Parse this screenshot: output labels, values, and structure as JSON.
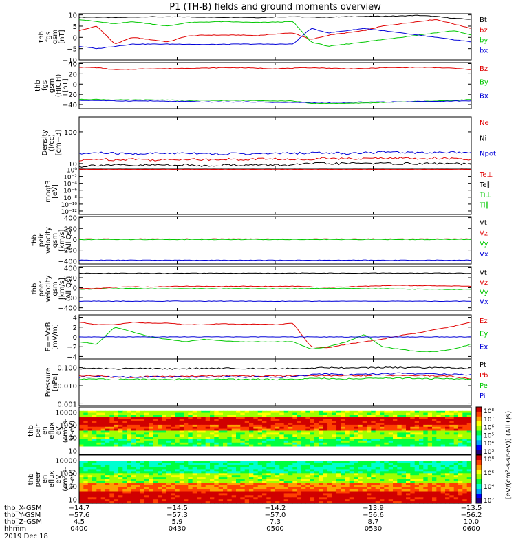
{
  "title": "P1 (TH-B) fields and ground moments overview",
  "colors": {
    "black": "#000000",
    "red": "#e00000",
    "green": "#00c800",
    "blue": "#0000d8"
  },
  "chart_data": [
    {
      "type": "line",
      "ylabel": [
        "thb",
        "fgs",
        "gsm",
        "[nT]"
      ],
      "yticks": [
        {
          "v": 10,
          "t": "10"
        },
        {
          "v": 5,
          "t": "5"
        },
        {
          "v": 0,
          "t": "0"
        },
        {
          "v": -5,
          "t": "−5"
        },
        {
          "v": -10,
          "t": "−10"
        }
      ],
      "ylim": [
        -10,
        10.5
      ],
      "series": [
        {
          "name": "Bt",
          "color": "#000000",
          "values": [
            9,
            9,
            8.8,
            9,
            9.2,
            9.1,
            9.1,
            9.0,
            8.9,
            9.0,
            8.8,
            9.1,
            9.2,
            9.0,
            9.0,
            9.2,
            9.3,
            9.4,
            9.5,
            9.8,
            9.3,
            8.5,
            8.0
          ]
        },
        {
          "name": "bz",
          "color": "#e00000",
          "values": [
            3,
            5,
            -3,
            0,
            -1,
            -2,
            0.5,
            1,
            1,
            1,
            0.8,
            1.5,
            2,
            -1,
            1,
            2,
            3,
            5,
            6,
            7,
            8,
            6,
            4
          ]
        },
        {
          "name": "by",
          "color": "#00c800",
          "values": [
            8,
            7,
            6,
            7,
            6,
            5,
            6.5,
            6.8,
            7,
            6.8,
            6.6,
            6.8,
            7,
            -2,
            -4,
            -3,
            -2,
            -1,
            0,
            1,
            2,
            3,
            1
          ]
        },
        {
          "name": "bx",
          "color": "#0000d8",
          "values": [
            -4,
            -5,
            -4,
            -3,
            -3,
            -3,
            -3,
            -3.2,
            -3.1,
            -3,
            -3,
            -3,
            -3,
            4,
            2,
            3,
            4,
            3,
            2,
            1,
            0,
            -1,
            -2
          ]
        }
      ]
    },
    {
      "type": "line",
      "ylabel": [
        "thb",
        "fgs",
        "gsm",
        "(HIGH)",
        "[nT]"
      ],
      "yticks": [
        {
          "v": 40,
          "t": "40"
        },
        {
          "v": 20,
          "t": "20"
        },
        {
          "v": 0,
          "t": "0"
        },
        {
          "v": -20,
          "t": "−20"
        },
        {
          "v": -40,
          "t": "−40"
        }
      ],
      "ylim": [
        -48,
        42
      ],
      "series": [
        {
          "name": "Bz",
          "color": "#e00000",
          "values": [
            33,
            32,
            28,
            29,
            30,
            30,
            31,
            31,
            32,
            32,
            31,
            30,
            31,
            32,
            31,
            30,
            30,
            32,
            32,
            33,
            32,
            31,
            28
          ]
        },
        {
          "name": "By",
          "color": "#00c800",
          "values": [
            -30,
            -30,
            -31,
            -31,
            -31,
            -31,
            -32,
            -32,
            -32,
            -32,
            -32,
            -33,
            -33,
            -38,
            -38,
            -38,
            -37,
            -36,
            -35,
            -34,
            -33,
            -32,
            -30
          ]
        },
        {
          "name": "Bx",
          "color": "#0000d8",
          "values": [
            -32,
            -32,
            -33,
            -33,
            -33,
            -34,
            -34,
            -35,
            -35,
            -35,
            -35,
            -36,
            -36,
            -36,
            -36,
            -36,
            -35,
            -35,
            -35,
            -34,
            -34,
            -33,
            -33
          ]
        }
      ]
    },
    {
      "type": "line",
      "ylabel": [
        "Density",
        "(l/cc)",
        "[cm−3]"
      ],
      "log": true,
      "yticks": [
        {
          "v": 100,
          "t": "100"
        },
        {
          "v": 10,
          "t": "10"
        }
      ],
      "ylim": [
        7,
        300
      ],
      "series": [
        {
          "name": "Ne",
          "color": "#e00000",
          "values": [
            12,
            14,
            13,
            14,
            13,
            13,
            14,
            13,
            14,
            13,
            14,
            14,
            13,
            14,
            15,
            14,
            14,
            15,
            15,
            14,
            15,
            14,
            13
          ]
        },
        {
          "name": "Ni",
          "color": "#000000",
          "values": [
            8,
            9,
            9,
            8.5,
            9,
            9,
            9,
            8.5,
            9,
            9,
            9,
            9,
            9,
            10,
            10,
            10,
            10.5,
            10,
            10,
            10,
            10,
            10,
            9.5
          ]
        },
        {
          "name": "Npot",
          "color": "#0000d8",
          "values": [
            20,
            22,
            21,
            20,
            21,
            21,
            22,
            21,
            20,
            21,
            20,
            21,
            21,
            22,
            22,
            21,
            22,
            23,
            23,
            22,
            23,
            23,
            22
          ]
        }
      ]
    },
    {
      "type": "line",
      "ylabel": [
        "moqt3",
        "[eV]"
      ],
      "log": true,
      "yticks": [
        {
          "v": 1,
          "t": "10⁰"
        },
        {
          "v": 0.01,
          "t": "10⁻²"
        },
        {
          "v": 0.0001,
          "t": "10⁻⁴"
        },
        {
          "v": 1e-06,
          "t": "10⁻⁶"
        },
        {
          "v": 1e-08,
          "t": "10⁻⁸"
        },
        {
          "v": 1e-10,
          "t": "10⁻¹⁰"
        },
        {
          "v": 1e-12,
          "t": "10⁻¹²"
        }
      ],
      "ylim": [
        1e-13,
        2
      ],
      "series": [
        {
          "name": "Te⊥",
          "color": "#e00000",
          "values": [
            1,
            1,
            1,
            1,
            1,
            1,
            1,
            1,
            1,
            1,
            1,
            1,
            1,
            1,
            1,
            1,
            1,
            1,
            1,
            1,
            1,
            1,
            1
          ]
        },
        {
          "name": "Te∥",
          "color": "#000000",
          "values": []
        },
        {
          "name": "Ti⊥",
          "color": "#00c800",
          "values": []
        },
        {
          "name": "Ti∥",
          "color": "#00c800",
          "values": []
        }
      ]
    },
    {
      "type": "line",
      "ylabel": [
        "thb",
        "peir",
        "velocity",
        "gsm",
        "[km/s]",
        "(All Qs)"
      ],
      "yticks": [
        {
          "v": 400,
          "t": "400"
        },
        {
          "v": 200,
          "t": "200"
        },
        {
          "v": 0,
          "t": "0"
        },
        {
          "v": -200,
          "t": "−200"
        },
        {
          "v": -400,
          "t": "−400"
        }
      ],
      "ylim": [
        -460,
        420
      ],
      "series": [
        {
          "name": "Vt",
          "color": "#000000",
          "values": []
        },
        {
          "name": "Vz",
          "color": "#e00000",
          "values": [
            5,
            5,
            4,
            5,
            5,
            5,
            6,
            5,
            5,
            5,
            4,
            5,
            5,
            5,
            5,
            5,
            6,
            5,
            5,
            5,
            4,
            5,
            5
          ]
        },
        {
          "name": "Vy",
          "color": "#00c800",
          "values": [
            -5,
            -5,
            -6,
            -5,
            -5,
            -5,
            -5,
            -5,
            -5,
            -5,
            -5,
            -5,
            -5,
            -5,
            -5,
            -5,
            -5,
            -5,
            -5,
            -5,
            -5,
            -5,
            -5
          ]
        },
        {
          "name": "Vx",
          "color": "#0000d8",
          "values": [
            -390,
            -390,
            -390,
            -390,
            -390,
            -390,
            -390,
            -390,
            -390,
            -390,
            -390,
            -390,
            -390,
            -390,
            -390,
            -390,
            -390,
            -390,
            -390,
            -390,
            -390,
            -390,
            -390
          ]
        }
      ]
    },
    {
      "type": "line",
      "ylabel": [
        "thb",
        "peer",
        "velocity",
        "gsm",
        "[km/s]",
        "(All Qs)"
      ],
      "yticks": [
        {
          "v": 400,
          "t": "400"
        },
        {
          "v": 200,
          "t": "200"
        },
        {
          "v": 0,
          "t": "0"
        },
        {
          "v": -200,
          "t": "−200"
        },
        {
          "v": -400,
          "t": "−400"
        }
      ],
      "ylim": [
        -460,
        420
      ],
      "series": [
        {
          "name": "Vt",
          "color": "#000000",
          "values": [
            290,
            285,
            290,
            288,
            290,
            285,
            290,
            287,
            290,
            288,
            290,
            289,
            290,
            292,
            290,
            288,
            290,
            292,
            291,
            290,
            292,
            290,
            289
          ]
        },
        {
          "name": "Vz",
          "color": "#e00000",
          "values": [
            -20,
            -15,
            10,
            20,
            15,
            25,
            30,
            30,
            25,
            30,
            30,
            25,
            30,
            20,
            10,
            15,
            30,
            40,
            50,
            40,
            40,
            35,
            30
          ]
        },
        {
          "name": "Vy",
          "color": "#00c800",
          "values": [
            -30,
            -25,
            -20,
            -15,
            -20,
            -20,
            -15,
            -20,
            -20,
            -20,
            -20,
            -20,
            -20,
            -15,
            -10,
            -15,
            -20,
            -20,
            -25,
            -30,
            -30,
            -35,
            -30
          ]
        },
        {
          "name": "Vx",
          "color": "#0000d8",
          "values": [
            -270,
            -270,
            -270,
            -270,
            -270,
            -270,
            -270,
            -270,
            -270,
            -270,
            -270,
            -270,
            -270,
            -270,
            -270,
            -270,
            -270,
            -270,
            -270,
            -270,
            -270,
            -270,
            -270
          ]
        }
      ]
    },
    {
      "type": "line",
      "ylabel": [
        "E=−VxB",
        "[mV/m]"
      ],
      "yticks": [
        {
          "v": 4,
          "t": "4"
        },
        {
          "v": 2,
          "t": "2"
        },
        {
          "v": 0,
          "t": "0"
        },
        {
          "v": -2,
          "t": "−2"
        },
        {
          "v": -4,
          "t": "−4"
        }
      ],
      "ylim": [
        -4.5,
        4.5
      ],
      "series": [
        {
          "name": "Ez",
          "color": "#e00000",
          "values": [
            3,
            2.5,
            2.5,
            3,
            2.8,
            2.8,
            2.5,
            2.5,
            2.7,
            2.6,
            2.6,
            2.5,
            2.8,
            -2,
            -2.2,
            -1.5,
            -1,
            -0.5,
            0.3,
            0.8,
            1.5,
            2.2,
            3
          ]
        },
        {
          "name": "Ey",
          "color": "#00c800",
          "values": [
            -1,
            -1.5,
            2,
            1,
            0,
            -0.5,
            -1,
            -0.5,
            -0.8,
            -1,
            -1,
            -1,
            -1,
            -2.5,
            -2,
            -1,
            0.5,
            -2,
            -2.5,
            -3,
            -3,
            -2.5,
            -1.5
          ]
        },
        {
          "name": "Ex",
          "color": "#0000d8",
          "values": [
            0,
            0,
            0,
            0,
            0,
            0,
            0,
            0,
            0,
            0,
            0,
            0,
            0,
            0,
            0,
            0,
            0,
            0,
            0,
            0,
            0,
            0,
            0
          ]
        }
      ]
    },
    {
      "type": "line",
      "ylabel": [
        "Pressure",
        "[nPa]"
      ],
      "log": true,
      "yticks": [
        {
          "v": 0.1,
          "t": "0.100"
        },
        {
          "v": 0.01,
          "t": "0.010"
        },
        {
          "v": 0.001,
          "t": "0.001"
        }
      ],
      "ylim": [
        0.0008,
        0.3
      ],
      "series": [
        {
          "name": "Pt",
          "color": "#000000",
          "values": [
            0.09,
            0.09,
            0.085,
            0.09,
            0.09,
            0.085,
            0.09,
            0.09,
            0.092,
            0.09,
            0.09,
            0.09,
            0.09,
            0.095,
            0.1,
            0.098,
            0.1,
            0.1,
            0.1,
            0.098,
            0.1,
            0.095,
            0.09
          ]
        },
        {
          "name": "Pb",
          "color": "#e00000",
          "values": [
            0.035,
            0.035,
            0.03,
            0.03,
            0.032,
            0.032,
            0.034,
            0.034,
            0.035,
            0.035,
            0.034,
            0.034,
            0.035,
            0.036,
            0.035,
            0.035,
            0.036,
            0.037,
            0.037,
            0.036,
            0.035,
            0.032,
            0.025
          ]
        },
        {
          "name": "Pe",
          "color": "#00c800",
          "values": [
            0.022,
            0.024,
            0.022,
            0.023,
            0.022,
            0.022,
            0.023,
            0.022,
            0.023,
            0.022,
            0.023,
            0.022,
            0.023,
            0.025,
            0.025,
            0.024,
            0.025,
            0.026,
            0.026,
            0.025,
            0.025,
            0.024,
            0.022
          ]
        },
        {
          "name": "Pi",
          "color": "#0000d8",
          "values": [
            0.03,
            0.032,
            0.03,
            0.03,
            0.031,
            0.03,
            0.031,
            0.03,
            0.031,
            0.03,
            0.031,
            0.03,
            0.031,
            0.04,
            0.045,
            0.04,
            0.042,
            0.045,
            0.048,
            0.045,
            0.044,
            0.042,
            0.04
          ]
        }
      ]
    },
    {
      "type": "heatmap",
      "ylabel": [
        "thb",
        "peir",
        "en",
        "eflux",
        "eV",
        "(cm²-s-",
        "sr-eV)"
      ],
      "log": true,
      "yticks": [
        {
          "v": 10000,
          "t": "10000"
        },
        {
          "v": 1000,
          "t": "1000"
        },
        {
          "v": 100,
          "t": "100"
        },
        {
          "v": 10,
          "t": "10"
        }
      ],
      "ylim": [
        5,
        25000
      ],
      "colorbar": {
        "ticks": [
          "10⁸",
          "10⁷",
          "10⁶",
          "10⁵",
          "10⁴",
          "10³"
        ],
        "label": "[eV/(cm²-s-sr-eV)] (All Qs)"
      }
    },
    {
      "type": "heatmap",
      "ylabel": [
        "thb",
        "peer",
        "en",
        "eflux",
        "eV",
        "(cm²-s-",
        "sr-eV)"
      ],
      "log": true,
      "yticks": [
        {
          "v": 10000,
          "t": "10000"
        },
        {
          "v": 1000,
          "t": "1000"
        },
        {
          "v": 100,
          "t": "100"
        },
        {
          "v": 10,
          "t": "10"
        }
      ],
      "ylim": [
        5,
        25000
      ],
      "colorbar": {
        "ticks": [
          "10⁸",
          "10⁶",
          "10⁴",
          "10²"
        ],
        "label": "[eV/(cm²-s-sr-eV)] (All Qs)"
      }
    }
  ],
  "xaxis": {
    "rows": [
      {
        "label": "thb_X-GSM",
        "values": [
          "−14.7",
          "−14.5",
          "−14.2",
          "−13.9",
          "−13.5"
        ]
      },
      {
        "label": "thb_Y-GSM",
        "values": [
          "−57.6",
          "−57.3",
          "−57.0",
          "−56.6",
          "−56.2"
        ]
      },
      {
        "label": "thb_Z-GSM",
        "values": [
          "4.5",
          "5.9",
          "7.3",
          "8.7",
          "10.0"
        ]
      },
      {
        "label": "hhmm",
        "values": [
          "0400",
          "0430",
          "0500",
          "0530",
          "0600"
        ]
      }
    ],
    "date": "2019 Dec 18"
  },
  "colorbar_label": "[eV/(cm²-s-sr-eV)] (All Qs)"
}
